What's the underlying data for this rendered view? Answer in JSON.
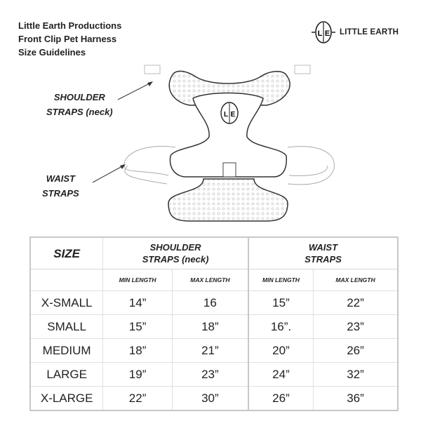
{
  "title_lines": [
    "Little Earth Productions",
    "Front Clip Pet Harness",
    "Size Guidelines"
  ],
  "brand": {
    "logo_letters": "L|E",
    "name": "LITTLE EARTH"
  },
  "diagram_labels": {
    "shoulder": [
      "SHOULDER",
      "STRAPS (neck)"
    ],
    "waist": [
      "WAIST",
      "STRAPS"
    ]
  },
  "table": {
    "size_header": "SIZE",
    "groups": [
      {
        "label_lines": [
          "SHOULDER",
          "STRAPS (neck)"
        ]
      },
      {
        "label_lines": [
          "WAIST",
          "STRAPS"
        ]
      }
    ],
    "subheaders": [
      "MIN LENGTH",
      "MAX LENGTH",
      "MIN LENGTH",
      "MAX LENGTH"
    ],
    "rows": [
      {
        "size": "X-SMALL",
        "values": [
          "14”",
          "16",
          "15”",
          "22”"
        ]
      },
      {
        "size": "SMALL",
        "values": [
          "15”",
          "18”",
          "16”.",
          "23”"
        ]
      },
      {
        "size": "MEDIUM",
        "values": [
          "18”",
          "21”",
          "20”",
          "26”"
        ]
      },
      {
        "size": "LARGE",
        "values": [
          "19”",
          "23”",
          "24”",
          "32”"
        ]
      },
      {
        "size": "X-LARGE",
        "values": [
          "22”",
          "30”",
          "26”",
          "36”"
        ]
      }
    ]
  },
  "colors": {
    "text": "#222222",
    "table_border": "#c8c8c8",
    "line_art": "#333333"
  }
}
